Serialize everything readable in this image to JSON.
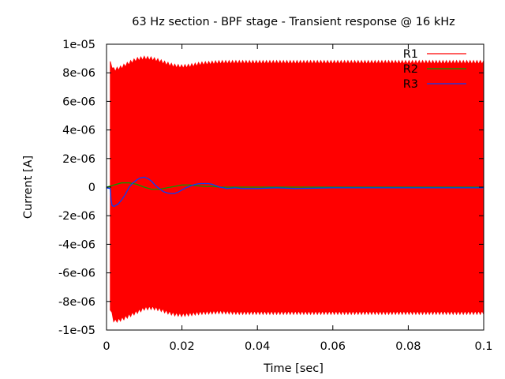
{
  "chart_data": {
    "type": "line",
    "title": "63 Hz section - BPF stage - Transient response @ 16 kHz",
    "xlabel": "Time [sec]",
    "ylabel": "Current [A]",
    "xlim": [
      0,
      0.1
    ],
    "ylim": [
      -1e-05,
      1e-05
    ],
    "x_ticks": [
      0,
      0.02,
      0.04,
      0.06,
      0.08,
      0.1
    ],
    "x_tick_labels": [
      "0",
      "0.02",
      "0.04",
      "0.06",
      "0.08",
      "0.1"
    ],
    "y_ticks": [
      -1e-05,
      -8e-06,
      -6e-06,
      -4e-06,
      -2e-06,
      0,
      2e-06,
      4e-06,
      6e-06,
      8e-06,
      1e-05
    ],
    "y_tick_labels": [
      "-1e-05",
      "-8e-06",
      "-6e-06",
      "-4e-06",
      "-2e-06",
      "0",
      "2e-06",
      "4e-06",
      "6e-06",
      "8e-06",
      "1e-05"
    ],
    "grid": false,
    "legend_position": "top-right",
    "series": [
      {
        "name": "R1",
        "color": "#ff0000",
        "style": "envelope",
        "x": [
          0.001,
          0.002,
          0.004,
          0.006,
          0.008,
          0.01,
          0.012,
          0.014,
          0.016,
          0.018,
          0.02,
          0.022,
          0.025,
          0.03,
          0.035,
          0.04,
          0.05,
          0.06,
          0.07,
          0.08,
          0.09,
          0.1
        ],
        "upper": [
          8.8e-06,
          8.3e-06,
          8.5e-06,
          8.8e-06,
          9.05e-06,
          9.15e-06,
          9.1e-06,
          8.95e-06,
          8.75e-06,
          8.6e-06,
          8.55e-06,
          8.6e-06,
          8.75e-06,
          8.85e-06,
          8.85e-06,
          8.85e-06,
          8.85e-06,
          8.85e-06,
          8.85e-06,
          8.85e-06,
          8.85e-06,
          8.85e-06
        ],
        "lower": [
          -8.6e-06,
          -9.5e-06,
          -9.35e-06,
          -9.1e-06,
          -8.85e-06,
          -8.6e-06,
          -8.55e-06,
          -8.65e-06,
          -8.85e-06,
          -9e-06,
          -9.05e-06,
          -9e-06,
          -8.9e-06,
          -8.85e-06,
          -8.9e-06,
          -8.9e-06,
          -8.9e-06,
          -8.9e-06,
          -8.9e-06,
          -8.9e-06,
          -8.9e-06,
          -8.9e-06
        ]
      },
      {
        "name": "R2",
        "color": "#00a000",
        "x": [
          0,
          0.002,
          0.004,
          0.006,
          0.008,
          0.01,
          0.012,
          0.014,
          0.016,
          0.018,
          0.02,
          0.022,
          0.024,
          0.026,
          0.028,
          0.03,
          0.032,
          0.035,
          0.04,
          0.05,
          0.06,
          0.08,
          0.1
        ],
        "values": [
          0,
          1.5e-07,
          3e-07,
          3e-07,
          2e-07,
          0,
          -1.5e-07,
          -1.5e-07,
          -5e-08,
          5e-08,
          1.5e-07,
          1.5e-07,
          1e-07,
          5e-08,
          5e-08,
          0,
          0,
          0,
          0,
          0,
          0,
          0,
          0
        ]
      },
      {
        "name": "R3",
        "color": "#0040ff",
        "x": [
          0,
          0.001,
          0.0012,
          0.0015,
          0.002,
          0.003,
          0.004,
          0.005,
          0.006,
          0.007,
          0.008,
          0.009,
          0.01,
          0.011,
          0.012,
          0.013,
          0.014,
          0.015,
          0.016,
          0.017,
          0.018,
          0.019,
          0.02,
          0.021,
          0.022,
          0.023,
          0.024,
          0.025,
          0.026,
          0.027,
          0.028,
          0.029,
          0.03,
          0.031,
          0.032,
          0.034,
          0.036,
          0.04,
          0.045,
          0.05,
          0.06,
          0.07,
          0.08,
          0.09,
          0.1
        ],
        "values": [
          -5e-08,
          -1e-07,
          -9e-07,
          -1.3e-06,
          -1.35e-06,
          -1.2e-06,
          -9e-07,
          -5e-07,
          0,
          3e-07,
          5e-07,
          6.5e-07,
          7e-07,
          6e-07,
          4e-07,
          1e-07,
          -1e-07,
          -3e-07,
          -4e-07,
          -4.5e-07,
          -4.5e-07,
          -3.5e-07,
          -2e-07,
          -5e-08,
          5e-08,
          1.5e-07,
          2.2e-07,
          2.5e-07,
          2.5e-07,
          2.5e-07,
          2e-07,
          1e-07,
          0,
          -5e-08,
          -1e-07,
          -5e-08,
          -1e-07,
          -1e-07,
          -5e-08,
          -1e-07,
          -5e-08,
          -5e-08,
          -5e-08,
          -5e-08,
          -5e-08
        ]
      }
    ]
  }
}
